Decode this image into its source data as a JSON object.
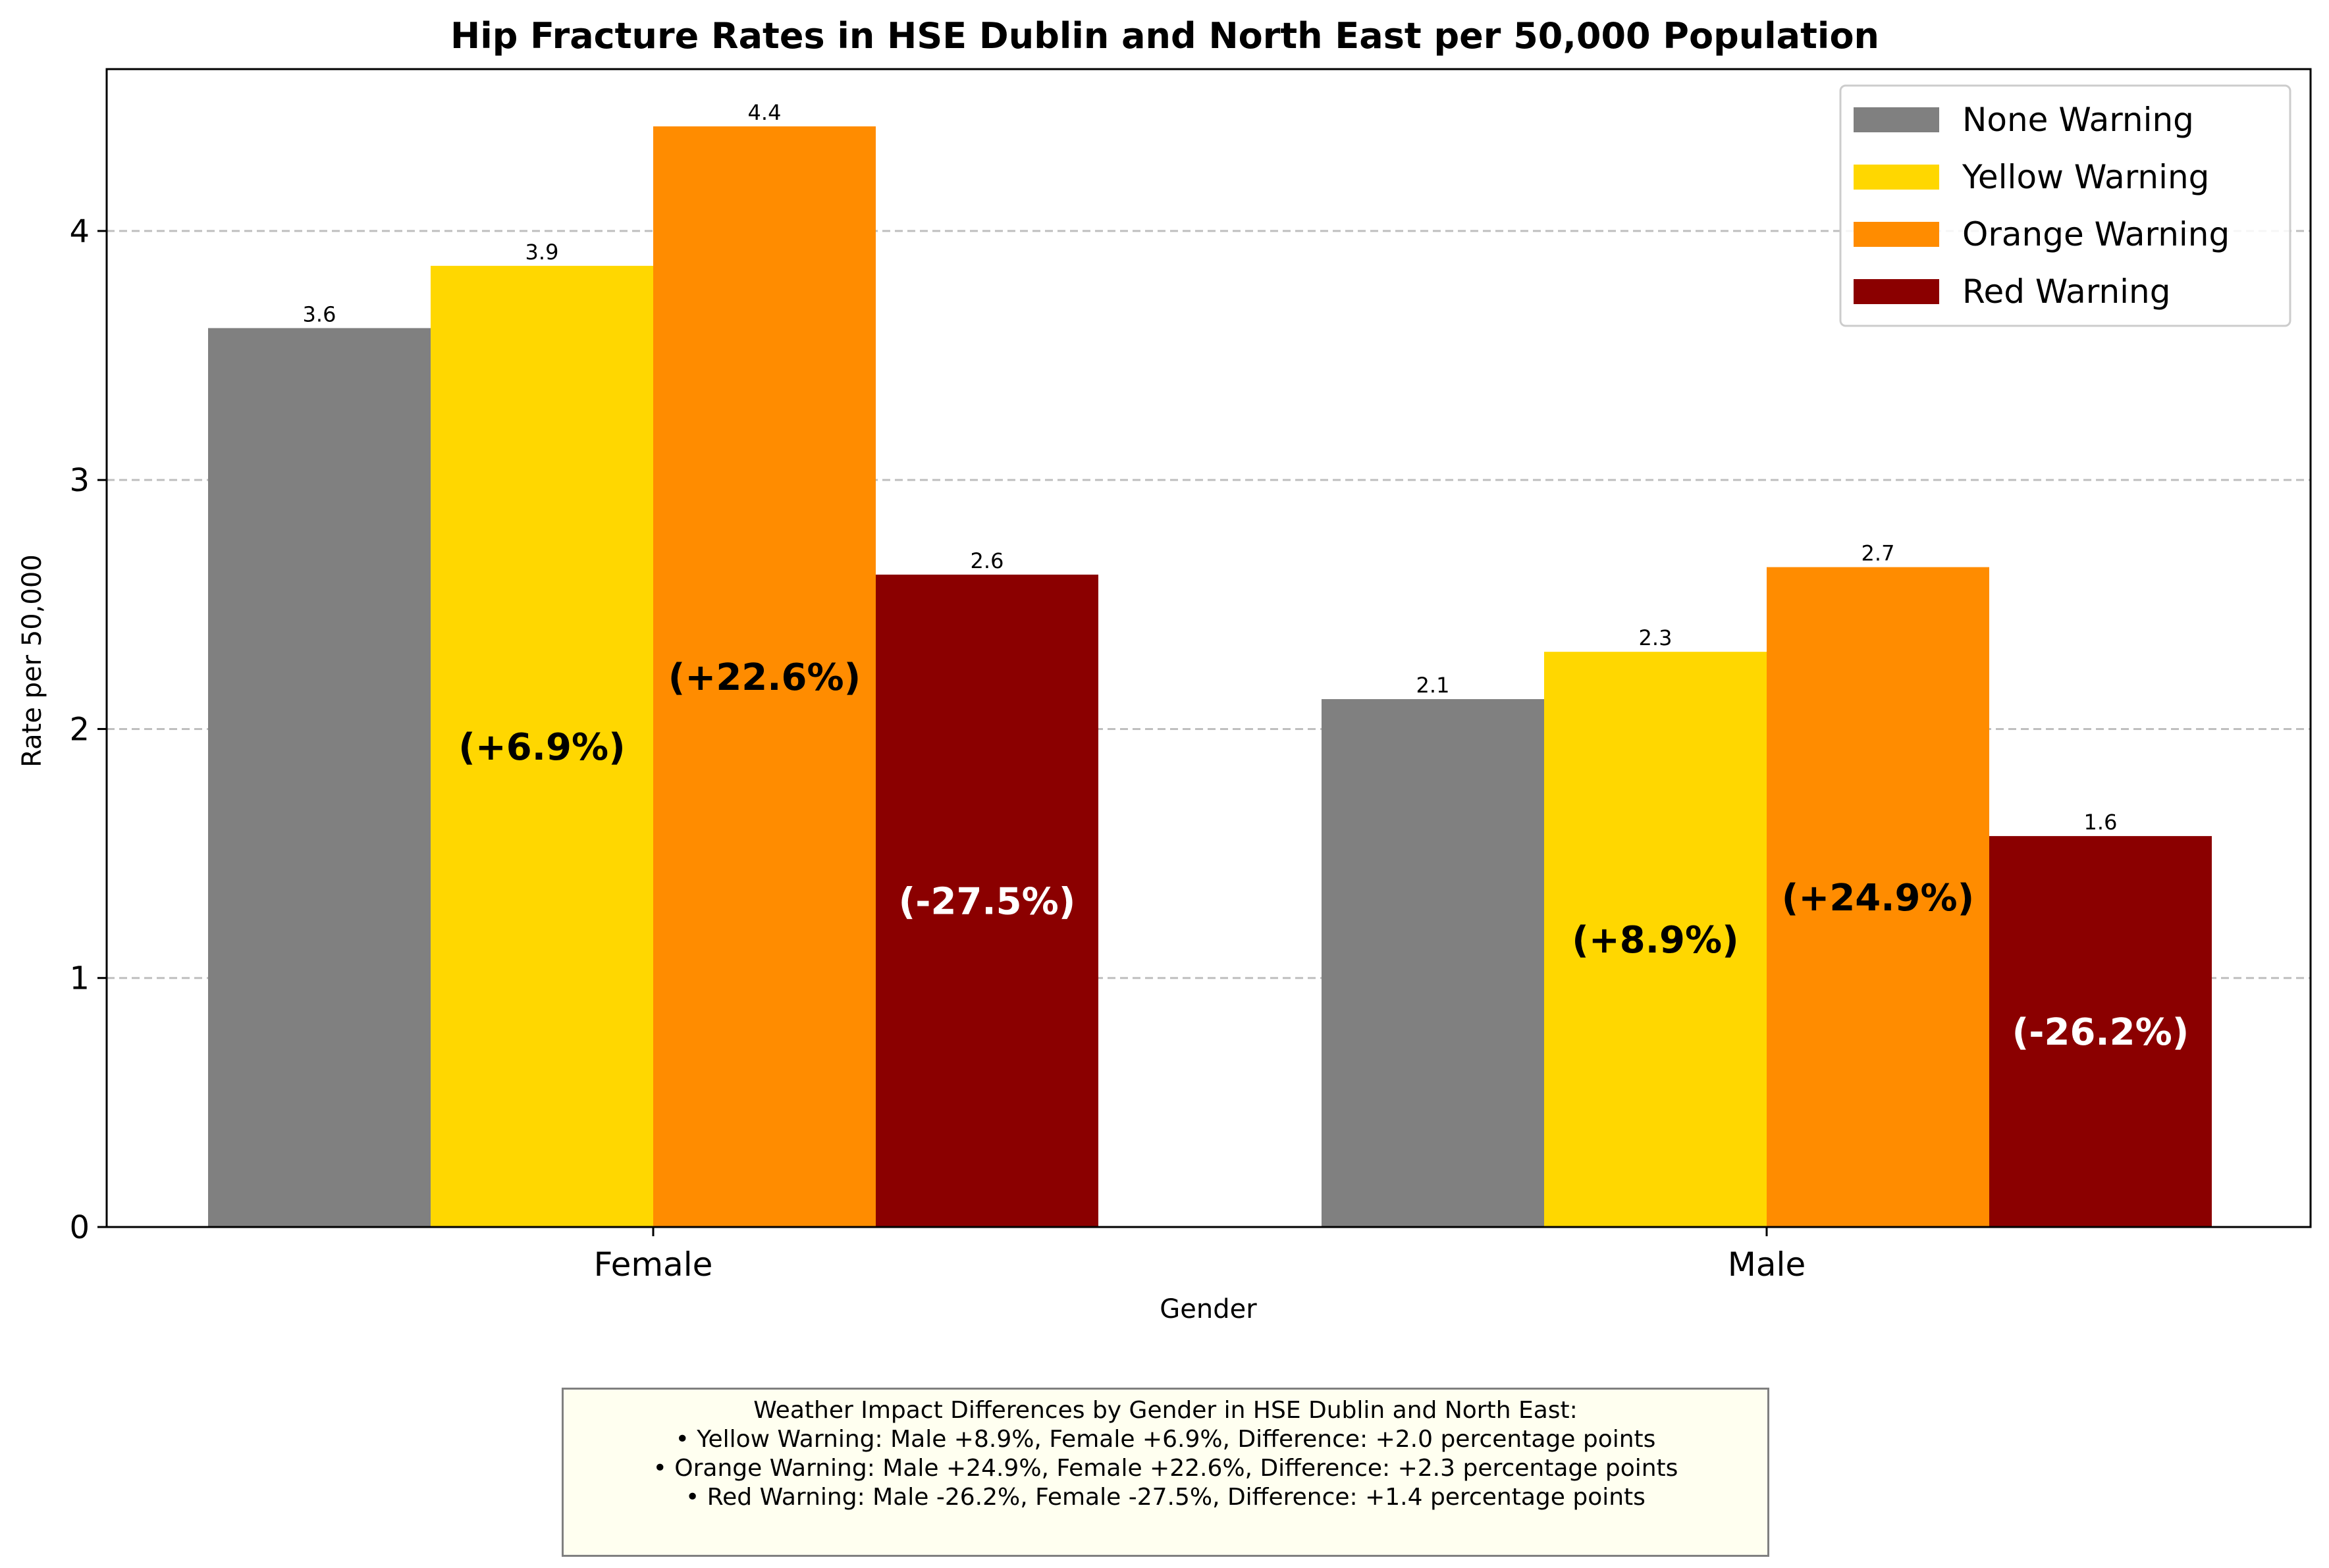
{
  "chart_data": {
    "type": "bar",
    "title": "Hip Fracture Rates in HSE Dublin and North East per 50,000 Population",
    "xlabel": "Gender",
    "ylabel": "Rate per 50,000",
    "categories": [
      "Female",
      "Male"
    ],
    "ylim": [
      0,
      4.65
    ],
    "yticks": [
      0,
      1,
      2,
      3,
      4
    ],
    "grid": "horizontal dashed",
    "legend_position": "top-right",
    "series": [
      {
        "name": "None Warning",
        "color": "#808080",
        "values": [
          3.61,
          2.12
        ],
        "value_labels": [
          "3.6",
          "2.1"
        ],
        "change_labels": [
          "",
          ""
        ]
      },
      {
        "name": "Yellow Warning",
        "color": "#FFD700",
        "values": [
          3.86,
          2.31
        ],
        "value_labels": [
          "3.9",
          "2.3"
        ],
        "change_labels": [
          "(+6.9%)",
          "(+8.9%)"
        ]
      },
      {
        "name": "Orange Warning",
        "color": "#FF8C00",
        "values": [
          4.42,
          2.65
        ],
        "value_labels": [
          "4.4",
          "2.7"
        ],
        "change_labels": [
          "(+22.6%)",
          "(+24.9%)"
        ]
      },
      {
        "name": "Red Warning",
        "color": "#8B0000",
        "values": [
          2.62,
          1.57
        ],
        "value_labels": [
          "2.6",
          "1.6"
        ],
        "change_labels": [
          "(-27.5%)",
          "(-26.2%)"
        ]
      }
    ]
  },
  "note": {
    "lines": [
      "Weather Impact Differences by Gender in HSE Dublin and North East:",
      "• Yellow Warning: Male +8.9%, Female +6.9%, Difference: +2.0 percentage points",
      "• Orange Warning: Male +24.9%, Female +22.6%, Difference: +2.3 percentage points",
      "• Red Warning: Male -26.2%, Female -27.5%, Difference: +1.4 percentage points"
    ]
  }
}
